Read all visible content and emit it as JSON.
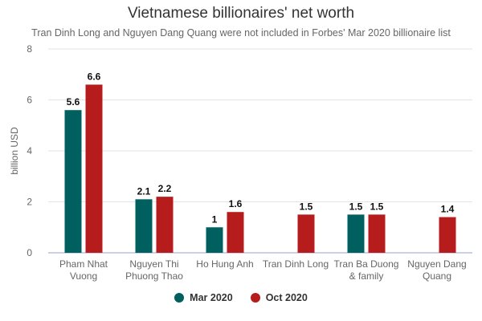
{
  "chart_data": {
    "type": "bar",
    "title": "Vietnamese billionaires' net worth",
    "subtitle": "Tran Dinh Long and Nguyen Dang Quang were not included in Forbes' Mar 2020 billionaire list",
    "xlabel": "",
    "ylabel": "billion USD",
    "ylim": [
      0,
      8
    ],
    "yticks": [
      "0",
      "2",
      "4",
      "6",
      "8"
    ],
    "grid": true,
    "legend_position": "bottom",
    "categories": [
      [
        "Pham Nhat",
        "Vuong"
      ],
      [
        "Nguyen Thi",
        "Phuong Thao"
      ],
      [
        "Ho Hung Anh"
      ],
      [
        "Tran Dinh Long"
      ],
      [
        "Tran Ba Duong",
        "& family"
      ],
      [
        "Nguyen Dang",
        "Quang"
      ]
    ],
    "series": [
      {
        "name": "Mar 2020",
        "color": "#00605f",
        "values": [
          5.6,
          2.1,
          1,
          null,
          1.5,
          null
        ],
        "labels": [
          "5.6",
          "2.1",
          "1",
          "",
          "1.5",
          ""
        ]
      },
      {
        "name": "Oct 2020",
        "color": "#b71c1c",
        "values": [
          6.6,
          2.2,
          1.6,
          1.5,
          1.5,
          1.4
        ],
        "labels": [
          "6.6",
          "2.2",
          "1.6",
          "1.5",
          "1.5",
          "1.4"
        ]
      }
    ]
  }
}
